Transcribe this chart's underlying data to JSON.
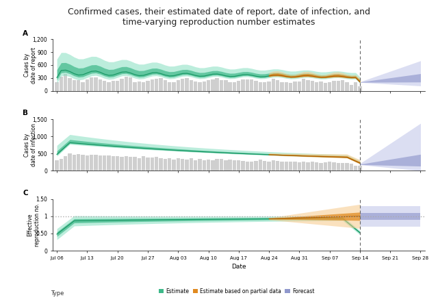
{
  "title": "Confirmed cases, their estimated date of report, date of infection, and\ntime-varying reproduction number estimates",
  "title_fontsize": 9,
  "ylabel_A": "Cases by\ndate of report",
  "ylabel_B": "Cases by\ndate of infection",
  "ylabel_C": "Effective\nreproduction no.",
  "xlabel": "Date",
  "xtick_labels": [
    "Jul 06",
    "Jul 13",
    "Jul 20",
    "Jul 27",
    "Aug 03",
    "Aug 10",
    "Aug 17",
    "Aug 24",
    "Aug 31",
    "Sep 07",
    "Sep 14",
    "Sep 21",
    "Sep 28"
  ],
  "ylim_A": [
    0,
    1200
  ],
  "ylim_B": [
    0,
    1500
  ],
  "ylim_C": [
    0.0,
    1.5
  ],
  "yticks_A": [
    0,
    300,
    600,
    900,
    1200
  ],
  "yticks_B": [
    0,
    500,
    1000,
    1500
  ],
  "yticks_C": [
    0.0,
    0.5,
    1.0,
    1.5
  ],
  "color_estimate_outer": "#85dfc0",
  "color_estimate_inner": "#3db889",
  "color_estimate_line": "#1a9966",
  "color_partial_outer": "#f7c98a",
  "color_partial_inner": "#e08a20",
  "color_forecast_outer": "#c4c8ea",
  "color_forecast_inner": "#9098cc",
  "color_bar": "#c0c0c0",
  "color_vline": "#666666",
  "color_hline": "#aaaaaa"
}
